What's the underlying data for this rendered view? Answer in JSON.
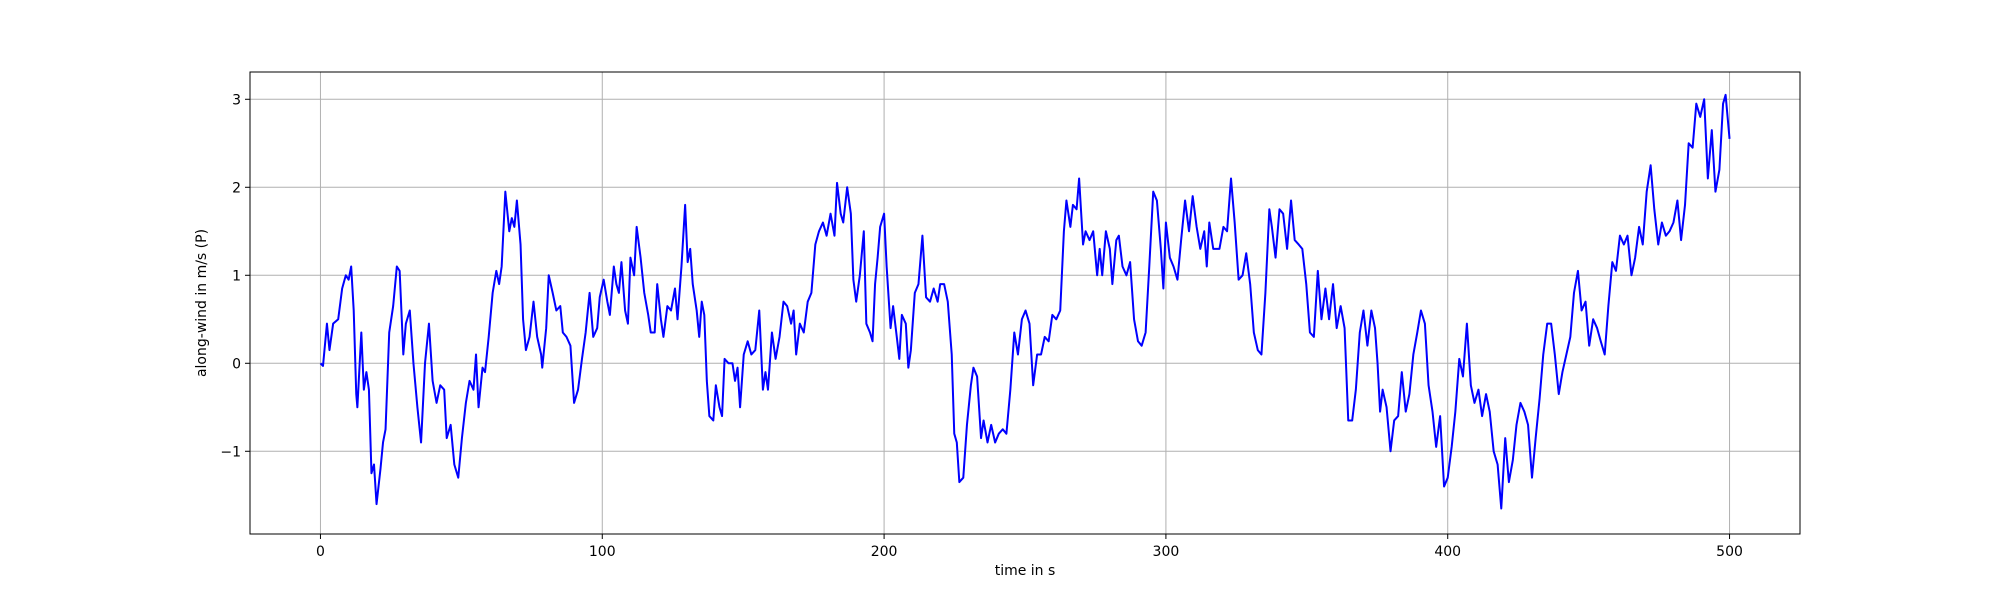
{
  "chart_data": {
    "type": "line",
    "xlabel": "time in s",
    "ylabel": "along-wind in m/s (P)",
    "xlim": [
      -25,
      525
    ],
    "ylim": [
      -1.94,
      3.31
    ],
    "xticks": [
      0,
      100,
      200,
      300,
      400,
      500
    ],
    "yticks": [
      {
        "value": -1,
        "label": "−1"
      },
      0,
      1,
      2,
      3
    ],
    "grid": true,
    "x": [
      0,
      0.9,
      2.3,
      3.2,
      4.5,
      6.3,
      7.7,
      9.0,
      10.0,
      10.9,
      11.8,
      12.7,
      13.1,
      14.5,
      15.4,
      16.3,
      17.2,
      18.1,
      19.0,
      19.9,
      21.3,
      22.2,
      23.1,
      24.4,
      25.8,
      27.1,
      28.1,
      29.4,
      30.3,
      31.7,
      33.0,
      34.4,
      35.7,
      37.1,
      38.5,
      39.8,
      41.2,
      42.5,
      43.9,
      44.8,
      46.2,
      47.5,
      48.9,
      50.2,
      51.6,
      52.9,
      54.3,
      55.2,
      56.1,
      57.5,
      58.4,
      59.7,
      61.1,
      62.4,
      63.4,
      64.3,
      65.6,
      67.0,
      67.9,
      68.8,
      69.7,
      71.0,
      71.9,
      72.9,
      74.2,
      75.6,
      76.9,
      78.3,
      78.7,
      80.1,
      81.0,
      82.4,
      83.7,
      85.1,
      86.0,
      87.3,
      88.7,
      90.0,
      91.4,
      92.8,
      94.1,
      95.5,
      96.8,
      98.2,
      99.1,
      100.5,
      101.8,
      102.7,
      104.1,
      105.0,
      105.9,
      106.8,
      108.1,
      109.1,
      110.0,
      111.3,
      112.2,
      113.6,
      114.9,
      116.3,
      117.2,
      118.6,
      119.5,
      120.8,
      121.7,
      123.1,
      124.4,
      125.8,
      126.7,
      128.1,
      129.4,
      130.3,
      131.2,
      132.1,
      133.5,
      134.4,
      135.3,
      136.2,
      137.1,
      138.0,
      139.4,
      140.3,
      141.6,
      142.5,
      143.4,
      144.8,
      146.2,
      147.1,
      148.0,
      148.9,
      150.2,
      151.6,
      152.9,
      154.3,
      155.7,
      157.0,
      157.9,
      158.8,
      160.2,
      161.5,
      162.9,
      164.3,
      165.6,
      167.0,
      167.9,
      168.8,
      170.1,
      171.5,
      172.9,
      174.2,
      175.6,
      176.9,
      178.3,
      179.6,
      181.0,
      182.4,
      183.3,
      184.6,
      185.5,
      186.9,
      188.2,
      189.1,
      190.1,
      191.4,
      192.8,
      193.7,
      195.0,
      195.9,
      196.8,
      197.7,
      198.6,
      200.0,
      200.9,
      202.3,
      203.2,
      204.5,
      205.4,
      206.3,
      207.7,
      208.6,
      209.5,
      210.9,
      212.2,
      213.6,
      214.9,
      216.3,
      217.6,
      219.0,
      219.9,
      221.3,
      222.6,
      224.0,
      224.9,
      225.8,
      226.7,
      228.1,
      229.4,
      230.8,
      231.7,
      233.0,
      234.4,
      235.3,
      236.7,
      238.0,
      239.4,
      240.7,
      242.1,
      243.4,
      244.8,
      246.2,
      247.5,
      248.9,
      250.2,
      251.6,
      252.9,
      254.3,
      255.7,
      257.0,
      258.4,
      259.7,
      261.1,
      262.5,
      263.8,
      264.7,
      266.1,
      267.0,
      268.3,
      269.2,
      270.6,
      271.5,
      272.9,
      274.2,
      275.6,
      276.5,
      277.4,
      278.7,
      280.1,
      281.0,
      282.4,
      283.3,
      284.6,
      286.0,
      287.3,
      288.7,
      290.1,
      291.4,
      292.8,
      294.1,
      295.5,
      296.8,
      298.2,
      299.1,
      300.0,
      301.4,
      302.7,
      304.1,
      305.4,
      306.8,
      308.2,
      309.5,
      310.9,
      312.2,
      313.6,
      314.5,
      315.4,
      316.8,
      318.1,
      319.0,
      320.4,
      321.7,
      323.1,
      324.4,
      325.8,
      327.2,
      328.5,
      329.9,
      331.2,
      332.6,
      333.9,
      335.3,
      336.7,
      337.6,
      338.9,
      340.3,
      341.6,
      343.0,
      344.4,
      345.7,
      347.1,
      348.4,
      349.8,
      351.1,
      352.5,
      353.9,
      355.2,
      356.6,
      357.9,
      359.3,
      360.6,
      362.0,
      363.4,
      364.7,
      366.1,
      367.4,
      368.8,
      370.1,
      371.5,
      372.9,
      374.2,
      375.1,
      376.0,
      376.9,
      378.3,
      379.7,
      381.0,
      382.4,
      383.7,
      385.1,
      386.4,
      387.8,
      389.2,
      390.5,
      391.9,
      393.2,
      394.6,
      395.9,
      397.3,
      398.7,
      400.0,
      401.4,
      402.7,
      404.1,
      405.4,
      406.8,
      408.2,
      409.5,
      410.9,
      412.2,
      413.6,
      414.9,
      416.3,
      417.7,
      419.0,
      420.4,
      421.7,
      423.1,
      424.4,
      425.8,
      427.2,
      428.5,
      429.9,
      431.2,
      432.6,
      433.9,
      435.3,
      436.7,
      438.0,
      439.4,
      440.7,
      442.1,
      443.5,
      444.8,
      446.2,
      447.5,
      448.9,
      450.2,
      451.6,
      453.0,
      454.3,
      455.7,
      457.0,
      458.4,
      459.7,
      461.1,
      462.5,
      463.8,
      465.2,
      466.5,
      467.9,
      469.2,
      470.6,
      472.0,
      473.3,
      474.7,
      476.0,
      477.4,
      478.7,
      480.1,
      481.5,
      482.8,
      484.2,
      485.5,
      486.9,
      488.2,
      489.6,
      491.0,
      492.3,
      493.7,
      495.0,
      496.4,
      497.7,
      498.6,
      500.0
    ],
    "series": [
      {
        "color": "#0000ff",
        "values": [
          0,
          -0.03,
          0.45,
          0.15,
          0.45,
          0.5,
          0.85,
          1.0,
          0.95,
          1.1,
          0.6,
          -0.35,
          -0.5,
          0.35,
          -0.3,
          -0.1,
          -0.3,
          -1.25,
          -1.15,
          -1.6,
          -1.2,
          -0.9,
          -0.75,
          0.35,
          0.65,
          1.1,
          1.05,
          0.1,
          0.45,
          0.6,
          0.0,
          -0.5,
          -0.9,
          0.0,
          0.45,
          -0.2,
          -0.45,
          -0.25,
          -0.3,
          -0.85,
          -0.7,
          -1.15,
          -1.3,
          -0.85,
          -0.45,
          -0.2,
          -0.3,
          0.1,
          -0.5,
          -0.05,
          -0.1,
          0.3,
          0.8,
          1.05,
          0.9,
          1.1,
          1.95,
          1.5,
          1.65,
          1.55,
          1.85,
          1.35,
          0.5,
          0.15,
          0.3,
          0.7,
          0.3,
          0.1,
          -0.05,
          0.4,
          1.0,
          0.8,
          0.6,
          0.65,
          0.35,
          0.3,
          0.2,
          -0.45,
          -0.3,
          0.05,
          0.35,
          0.8,
          0.3,
          0.4,
          0.75,
          0.95,
          0.7,
          0.55,
          1.1,
          0.9,
          0.8,
          1.15,
          0.6,
          0.45,
          1.2,
          1.0,
          1.55,
          1.2,
          0.8,
          0.55,
          0.35,
          0.35,
          0.9,
          0.5,
          0.3,
          0.65,
          0.6,
          0.85,
          0.5,
          1.1,
          1.8,
          1.15,
          1.3,
          0.9,
          0.6,
          0.3,
          0.7,
          0.55,
          -0.2,
          -0.6,
          -0.65,
          -0.25,
          -0.5,
          -0.6,
          0.05,
          0.0,
          0.0,
          -0.2,
          -0.05,
          -0.5,
          0.1,
          0.25,
          0.1,
          0.15,
          0.6,
          -0.3,
          -0.1,
          -0.3,
          0.35,
          0.05,
          0.3,
          0.7,
          0.65,
          0.45,
          0.6,
          0.1,
          0.45,
          0.35,
          0.7,
          0.8,
          1.35,
          1.5,
          1.6,
          1.45,
          1.7,
          1.45,
          2.05,
          1.7,
          1.6,
          2.0,
          1.7,
          0.95,
          0.7,
          1.0,
          1.5,
          0.45,
          0.35,
          0.25,
          0.9,
          1.2,
          1.55,
          1.7,
          1.1,
          0.4,
          0.65,
          0.3,
          0.05,
          0.55,
          0.45,
          -0.05,
          0.15,
          0.8,
          0.9,
          1.45,
          0.75,
          0.7,
          0.85,
          0.7,
          0.9,
          0.9,
          0.7,
          0.1,
          -0.8,
          -0.9,
          -1.35,
          -1.3,
          -0.7,
          -0.25,
          -0.05,
          -0.15,
          -0.85,
          -0.65,
          -0.9,
          -0.7,
          -0.9,
          -0.8,
          -0.75,
          -0.8,
          -0.3,
          0.35,
          0.1,
          0.5,
          0.6,
          0.45,
          -0.25,
          0.1,
          0.1,
          0.3,
          0.25,
          0.55,
          0.5,
          0.6,
          1.5,
          1.85,
          1.55,
          1.8,
          1.75,
          2.1,
          1.35,
          1.5,
          1.4,
          1.5,
          1.0,
          1.3,
          1.0,
          1.5,
          1.3,
          0.9,
          1.4,
          1.45,
          1.1,
          1.0,
          1.15,
          0.5,
          0.25,
          0.2,
          0.35,
          1.1,
          1.95,
          1.85,
          1.3,
          0.85,
          1.6,
          1.2,
          1.1,
          0.95,
          1.4,
          1.85,
          1.5,
          1.9,
          1.55,
          1.3,
          1.5,
          1.1,
          1.6,
          1.3,
          1.3,
          1.3,
          1.55,
          1.5,
          2.1,
          1.6,
          0.95,
          1.0,
          1.25,
          0.9,
          0.35,
          0.15,
          0.1,
          0.8,
          1.75,
          1.55,
          1.2,
          1.75,
          1.7,
          1.3,
          1.85,
          1.4,
          1.35,
          1.3,
          0.9,
          0.35,
          0.3,
          1.05,
          0.5,
          0.85,
          0.5,
          0.9,
          0.4,
          0.65,
          0.4,
          -0.65,
          -0.65,
          -0.3,
          0.35,
          0.6,
          0.2,
          0.6,
          0.4,
          0.0,
          -0.55,
          -0.3,
          -0.5,
          -1.0,
          -0.65,
          -0.6,
          -0.1,
          -0.55,
          -0.35,
          0.1,
          0.35,
          0.6,
          0.45,
          -0.25,
          -0.55,
          -0.95,
          -0.6,
          -1.4,
          -1.3,
          -0.95,
          -0.55,
          0.05,
          -0.15,
          0.45,
          -0.25,
          -0.45,
          -0.3,
          -0.6,
          -0.35,
          -0.55,
          -1.0,
          -1.15,
          -1.65,
          -0.85,
          -1.35,
          -1.1,
          -0.7,
          -0.45,
          -0.55,
          -0.7,
          -1.3,
          -0.85,
          -0.4,
          0.1,
          0.45,
          0.45,
          0.1,
          -0.35,
          -0.1,
          0.1,
          0.3,
          0.8,
          1.05,
          0.6,
          0.7,
          0.2,
          0.5,
          0.4,
          0.25,
          0.1,
          0.65,
          1.15,
          1.05,
          1.45,
          1.35,
          1.45,
          1.0,
          1.2,
          1.55,
          1.35,
          1.95,
          2.25,
          1.75,
          1.35,
          1.6,
          1.45,
          1.5,
          1.6,
          1.85,
          1.4,
          1.8,
          2.5,
          2.45,
          2.95,
          2.8,
          3.0,
          2.1,
          2.65,
          1.95,
          2.2,
          2.95,
          3.05,
          2.55
        ]
      }
    ]
  }
}
